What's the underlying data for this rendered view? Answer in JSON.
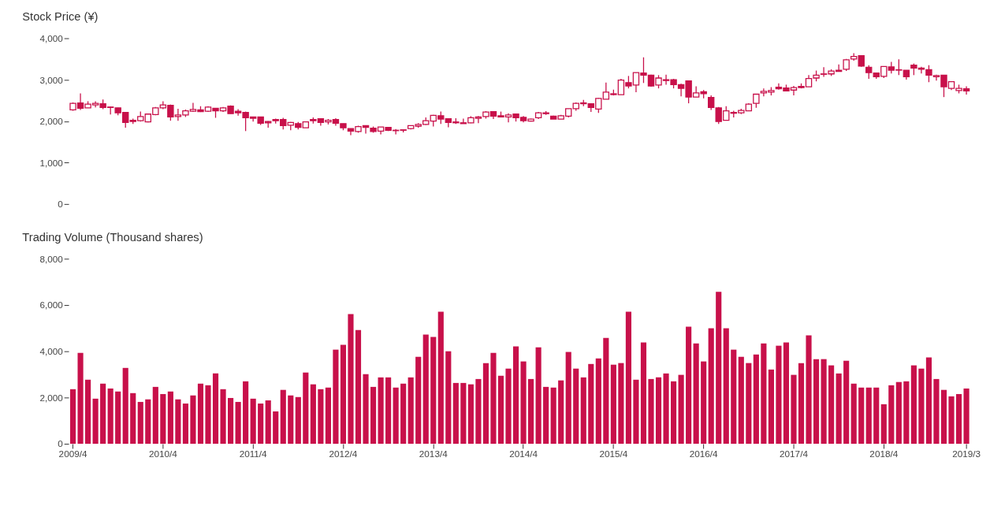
{
  "chart_data": [
    {
      "type": "candlestick",
      "title": "Stock Price (¥)",
      "color": "#c8104a",
      "tick_labels": "y",
      "grid": false,
      "categories": [
        "2009/4",
        null,
        null,
        null,
        null,
        null,
        null,
        null,
        null,
        null,
        null,
        null,
        "2010/4",
        null,
        null,
        null,
        null,
        null,
        null,
        null,
        null,
        null,
        null,
        null,
        "2011/4",
        null,
        null,
        null,
        null,
        null,
        null,
        null,
        null,
        null,
        null,
        null,
        "2012/4",
        null,
        null,
        null,
        null,
        null,
        null,
        null,
        null,
        null,
        null,
        null,
        "2013/4",
        null,
        null,
        null,
        null,
        null,
        null,
        null,
        null,
        null,
        null,
        null,
        "2014/4",
        null,
        null,
        null,
        null,
        null,
        null,
        null,
        null,
        null,
        null,
        null,
        "2015/4",
        null,
        null,
        null,
        null,
        null,
        null,
        null,
        null,
        null,
        null,
        null,
        "2016/4",
        null,
        null,
        null,
        null,
        null,
        null,
        null,
        null,
        null,
        null,
        null,
        "2017/4",
        null,
        null,
        null,
        null,
        null,
        null,
        null,
        null,
        null,
        null,
        null,
        "2018/4",
        null,
        null,
        null,
        null,
        null,
        null,
        null,
        null,
        null,
        null,
        "2019/3"
      ],
      "ohlc": [
        [
          2270,
          2450,
          2250,
          2430
        ],
        [
          2440,
          2670,
          2270,
          2310
        ],
        [
          2320,
          2480,
          2320,
          2410
        ],
        [
          2390,
          2480,
          2330,
          2430
        ],
        [
          2420,
          2520,
          2290,
          2330
        ],
        [
          2340,
          2350,
          2160,
          2330
        ],
        [
          2320,
          2320,
          2140,
          2200
        ],
        [
          2210,
          2210,
          1840,
          1970
        ],
        [
          2020,
          2060,
          1930,
          1990
        ],
        [
          2010,
          2230,
          1990,
          2110
        ],
        [
          1980,
          2170,
          1970,
          2170
        ],
        [
          2160,
          2340,
          2140,
          2320
        ],
        [
          2320,
          2480,
          2290,
          2390
        ],
        [
          2380,
          2400,
          2010,
          2100
        ],
        [
          2110,
          2300,
          2010,
          2150
        ],
        [
          2150,
          2280,
          2100,
          2250
        ],
        [
          2240,
          2440,
          2220,
          2280
        ],
        [
          2270,
          2360,
          2220,
          2230
        ],
        [
          2240,
          2360,
          2220,
          2340
        ],
        [
          2310,
          2310,
          2080,
          2250
        ],
        [
          2250,
          2340,
          2220,
          2320
        ],
        [
          2360,
          2380,
          2180,
          2180
        ],
        [
          2240,
          2290,
          2130,
          2200
        ],
        [
          2210,
          2230,
          1760,
          2080
        ],
        [
          2100,
          2110,
          1990,
          2070
        ],
        [
          2100,
          2110,
          1910,
          1950
        ],
        [
          1990,
          2000,
          1840,
          1960
        ],
        [
          2040,
          2060,
          1940,
          2010
        ],
        [
          2040,
          2080,
          1800,
          1890
        ],
        [
          1900,
          1980,
          1780,
          1970
        ],
        [
          1940,
          1980,
          1800,
          1850
        ],
        [
          1840,
          1980,
          1840,
          1980
        ],
        [
          2040,
          2090,
          1940,
          2010
        ],
        [
          2060,
          2070,
          1890,
          1970
        ],
        [
          1980,
          2050,
          1920,
          2020
        ],
        [
          2040,
          2070,
          1890,
          1950
        ],
        [
          1940,
          1940,
          1780,
          1840
        ],
        [
          1820,
          1820,
          1660,
          1760
        ],
        [
          1750,
          1890,
          1720,
          1870
        ],
        [
          1890,
          1890,
          1700,
          1850
        ],
        [
          1830,
          1870,
          1720,
          1750
        ],
        [
          1760,
          1860,
          1680,
          1860
        ],
        [
          1850,
          1860,
          1760,
          1780
        ],
        [
          1780,
          1810,
          1680,
          1770
        ],
        [
          1790,
          1800,
          1730,
          1780
        ],
        [
          1820,
          1890,
          1800,
          1890
        ],
        [
          1880,
          1950,
          1840,
          1920
        ],
        [
          1920,
          2090,
          1910,
          2010
        ],
        [
          2000,
          2150,
          1870,
          2140
        ],
        [
          2130,
          2230,
          1930,
          2050
        ],
        [
          2060,
          2060,
          1850,
          1970
        ],
        [
          1980,
          2070,
          1930,
          1960
        ],
        [
          1960,
          2060,
          1940,
          1940
        ],
        [
          1960,
          2120,
          1950,
          2080
        ],
        [
          2070,
          2120,
          1950,
          2100
        ],
        [
          2110,
          2240,
          2060,
          2220
        ],
        [
          2230,
          2230,
          2050,
          2120
        ],
        [
          2130,
          2230,
          2100,
          2100
        ],
        [
          2100,
          2190,
          1970,
          2150
        ],
        [
          2170,
          2180,
          1990,
          2080
        ],
        [
          2090,
          2120,
          1970,
          2010
        ],
        [
          2000,
          2060,
          1990,
          2050
        ],
        [
          2080,
          2220,
          2050,
          2200
        ],
        [
          2180,
          2240,
          2150,
          2200
        ],
        [
          2120,
          2130,
          2050,
          2050
        ],
        [
          2050,
          2150,
          2050,
          2130
        ],
        [
          2120,
          2300,
          2090,
          2300
        ],
        [
          2300,
          2450,
          2250,
          2430
        ],
        [
          2420,
          2510,
          2360,
          2440
        ],
        [
          2420,
          2420,
          2220,
          2330
        ],
        [
          2290,
          2560,
          2200,
          2550
        ],
        [
          2530,
          2930,
          2530,
          2700
        ],
        [
          2640,
          2760,
          2620,
          2660
        ],
        [
          2640,
          3020,
          2640,
          2990
        ],
        [
          2930,
          3090,
          2790,
          2850
        ],
        [
          2870,
          3170,
          2700,
          3170
        ],
        [
          3160,
          3540,
          2920,
          3110
        ],
        [
          3110,
          3120,
          2830,
          2850
        ],
        [
          2870,
          3110,
          2790,
          3040
        ],
        [
          3000,
          3120,
          2880,
          2980
        ],
        [
          3000,
          3020,
          2790,
          2880
        ],
        [
          2880,
          2900,
          2600,
          2790
        ],
        [
          2970,
          2970,
          2430,
          2580
        ],
        [
          2580,
          2840,
          2580,
          2680
        ],
        [
          2710,
          2750,
          2550,
          2660
        ],
        [
          2570,
          2620,
          2270,
          2330
        ],
        [
          2320,
          2340,
          1930,
          1990
        ],
        [
          2020,
          2360,
          2020,
          2250
        ],
        [
          2190,
          2250,
          2090,
          2210
        ],
        [
          2200,
          2300,
          2170,
          2260
        ],
        [
          2250,
          2430,
          2240,
          2410
        ],
        [
          2430,
          2650,
          2320,
          2650
        ],
        [
          2680,
          2790,
          2600,
          2720
        ],
        [
          2700,
          2820,
          2620,
          2740
        ],
        [
          2820,
          2910,
          2760,
          2780
        ],
        [
          2800,
          2880,
          2730,
          2730
        ],
        [
          2750,
          2850,
          2620,
          2810
        ],
        [
          2840,
          2910,
          2790,
          2810
        ],
        [
          2830,
          3110,
          2830,
          3030
        ],
        [
          3040,
          3220,
          2960,
          3110
        ],
        [
          3130,
          3300,
          3070,
          3140
        ],
        [
          3140,
          3250,
          3090,
          3210
        ],
        [
          3230,
          3370,
          3190,
          3200
        ],
        [
          3250,
          3500,
          3210,
          3480
        ],
        [
          3500,
          3640,
          3460,
          3560
        ],
        [
          3580,
          3590,
          3310,
          3330
        ],
        [
          3300,
          3350,
          3020,
          3170
        ],
        [
          3160,
          3160,
          3020,
          3070
        ],
        [
          3080,
          3320,
          3040,
          3320
        ],
        [
          3310,
          3430,
          3150,
          3230
        ],
        [
          3240,
          3490,
          3110,
          3230
        ],
        [
          3230,
          3230,
          3000,
          3070
        ],
        [
          3350,
          3390,
          3110,
          3280
        ],
        [
          3280,
          3310,
          3150,
          3250
        ],
        [
          3240,
          3350,
          2940,
          3110
        ],
        [
          3070,
          3120,
          2980,
          3100
        ],
        [
          3110,
          3110,
          2580,
          2830
        ],
        [
          2790,
          2950,
          2750,
          2950
        ],
        [
          2740,
          2880,
          2670,
          2790
        ],
        [
          2780,
          2840,
          2640,
          2730
        ]
      ],
      "ylim": [
        0,
        4000
      ],
      "yticks": [
        {
          "value": 0,
          "label": "0"
        },
        {
          "value": 1000,
          "label": "1,000"
        },
        {
          "value": 2000,
          "label": "2,000"
        },
        {
          "value": 3000,
          "label": "3,000"
        },
        {
          "value": 4000,
          "label": "4,000"
        }
      ]
    },
    {
      "type": "bar",
      "title": "Trading Volume (Thousand shares)",
      "color": "#c8104a",
      "grid": false,
      "categories": [
        "2009/4",
        null,
        null,
        null,
        null,
        null,
        null,
        null,
        null,
        null,
        null,
        null,
        "2010/4",
        null,
        null,
        null,
        null,
        null,
        null,
        null,
        null,
        null,
        null,
        null,
        "2011/4",
        null,
        null,
        null,
        null,
        null,
        null,
        null,
        null,
        null,
        null,
        null,
        "2012/4",
        null,
        null,
        null,
        null,
        null,
        null,
        null,
        null,
        null,
        null,
        null,
        "2013/4",
        null,
        null,
        null,
        null,
        null,
        null,
        null,
        null,
        null,
        null,
        null,
        "2014/4",
        null,
        null,
        null,
        null,
        null,
        null,
        null,
        null,
        null,
        null,
        null,
        "2015/4",
        null,
        null,
        null,
        null,
        null,
        null,
        null,
        null,
        null,
        null,
        null,
        "2016/4",
        null,
        null,
        null,
        null,
        null,
        null,
        null,
        null,
        null,
        null,
        null,
        "2017/4",
        null,
        null,
        null,
        null,
        null,
        null,
        null,
        null,
        null,
        null,
        null,
        "2018/4",
        null,
        null,
        null,
        null,
        null,
        null,
        null,
        null,
        null,
        null,
        "2019/3"
      ],
      "values": [
        2360,
        3930,
        2770,
        1950,
        2600,
        2390,
        2260,
        3280,
        2190,
        1810,
        1920,
        2460,
        2150,
        2260,
        1920,
        1740,
        2090,
        2600,
        2530,
        3040,
        2360,
        1980,
        1810,
        2700,
        1950,
        1740,
        1880,
        1400,
        2330,
        2090,
        2020,
        3080,
        2570,
        2360,
        2430,
        4070,
        4280,
        5610,
        4920,
        3010,
        2460,
        2870,
        2870,
        2430,
        2600,
        2870,
        3760,
        4720,
        4620,
        5710,
        4000,
        2630,
        2630,
        2570,
        2800,
        3490,
        3930,
        2940,
        3250,
        4210,
        3560,
        2800,
        4170,
        2460,
        2430,
        2740,
        3970,
        3250,
        2870,
        3450,
        3690,
        4580,
        3420,
        3490,
        5710,
        2770,
        4380,
        2800,
        2870,
        3040,
        2700,
        2980,
        5060,
        4340,
        3560,
        4990,
        6570,
        4990,
        4070,
        3760,
        3490,
        3860,
        4340,
        3210,
        4240,
        4380,
        2980,
        3490,
        4690,
        3660,
        3660,
        3390,
        3040,
        3590,
        2600,
        2430,
        2430,
        2430,
        1710,
        2530,
        2670,
        2700,
        3390,
        3250,
        3730,
        2800,
        2330,
        2050,
        2150,
        2390
      ],
      "ylim": [
        0,
        8000
      ],
      "yticks": [
        {
          "value": 0,
          "label": "0"
        },
        {
          "value": 2000,
          "label": "2,000"
        },
        {
          "value": 4000,
          "label": "4,000"
        },
        {
          "value": 6000,
          "label": "6,000"
        },
        {
          "value": 8000,
          "label": "8,000"
        }
      ]
    }
  ]
}
